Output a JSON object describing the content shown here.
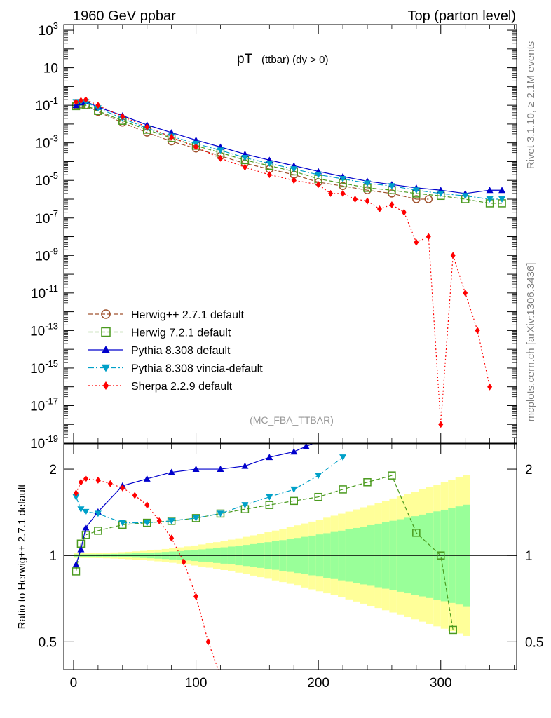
{
  "header": {
    "left": "1960 GeV ppbar",
    "right": "Top (parton level)"
  },
  "side_labels": {
    "rivet": "Rivet 3.1.10, ≥ 2.1M events",
    "mcplots": "mcplots.cern.ch [arXiv:1306.3436]"
  },
  "chart_data": [
    {
      "type": "line",
      "panel": "main",
      "title_main": "pT",
      "title_sub": "(ttbar) (dy > 0)",
      "watermark": "(MC_FBA_TTBAR)",
      "yscale": "log",
      "ylim": [
        1e-19,
        2000
      ],
      "xlim": [
        -8,
        362
      ],
      "ytick_exponents": [
        3,
        1,
        -1,
        -3,
        -5,
        -7,
        -9,
        -11,
        -13,
        -15,
        -17,
        -19
      ],
      "legend_position": "bottom-left",
      "series": [
        {
          "name": "Herwig++ 2.7.1 default",
          "color": "#a0522d",
          "marker": "circle-open",
          "line": "dashed",
          "x": [
            2,
            6,
            10,
            20,
            40,
            60,
            80,
            100,
            120,
            140,
            160,
            180,
            200,
            220,
            240,
            260,
            280,
            290
          ],
          "y": [
            0.1,
            0.12,
            0.1,
            0.045,
            0.012,
            0.0035,
            0.0012,
            0.0005,
            0.0002,
            8e-05,
            4e-05,
            2e-05,
            8e-06,
            5e-06,
            3e-06,
            2e-06,
            1e-06,
            1e-06
          ]
        },
        {
          "name": "Herwig 7.2.1 default",
          "color": "#4a9a1e",
          "marker": "square-open",
          "line": "dashed",
          "x": [
            2,
            6,
            10,
            20,
            40,
            60,
            80,
            100,
            120,
            140,
            160,
            180,
            200,
            220,
            240,
            260,
            280,
            300,
            320,
            340,
            350
          ],
          "y": [
            0.09,
            0.1,
            0.1,
            0.05,
            0.015,
            0.005,
            0.0018,
            0.0007,
            0.0003,
            0.00012,
            6e-05,
            3e-05,
            1.2e-05,
            7e-06,
            4e-06,
            3e-06,
            2e-06,
            1.5e-06,
            1e-06,
            6e-07,
            6e-07
          ]
        },
        {
          "name": "Pythia 8.308 default",
          "color": "#0000cc",
          "marker": "triangle-up",
          "line": "solid",
          "x": [
            2,
            6,
            10,
            20,
            40,
            60,
            80,
            100,
            120,
            140,
            160,
            180,
            200,
            220,
            240,
            260,
            280,
            300,
            320,
            340,
            350
          ],
          "y": [
            0.1,
            0.14,
            0.16,
            0.08,
            0.028,
            0.009,
            0.0035,
            0.0014,
            0.0006,
            0.00025,
            0.00012,
            6e-05,
            3e-05,
            1.6e-05,
            9e-06,
            6e-06,
            4e-06,
            3e-06,
            2e-06,
            3e-06,
            3e-06
          ]
        },
        {
          "name": "Pythia 8.308 vincia-default",
          "color": "#00a0c8",
          "marker": "triangle-down",
          "line": "dashdot",
          "x": [
            2,
            6,
            10,
            20,
            40,
            60,
            80,
            100,
            120,
            140,
            160,
            180,
            200,
            220,
            240,
            260,
            280,
            300,
            320,
            340,
            350
          ],
          "y": [
            0.15,
            0.15,
            0.15,
            0.07,
            0.02,
            0.006,
            0.0022,
            0.0009,
            0.0004,
            0.00016,
            8e-05,
            4e-05,
            2e-05,
            1.2e-05,
            7e-06,
            5e-06,
            3e-06,
            2e-06,
            1.5e-06,
            1e-06,
            1e-06
          ]
        },
        {
          "name": "Sherpa 2.2.9 default",
          "color": "#ff0000",
          "marker": "diamond",
          "line": "dotted",
          "x": [
            2,
            6,
            10,
            20,
            40,
            60,
            80,
            100,
            120,
            140,
            160,
            180,
            200,
            210,
            220,
            230,
            240,
            250,
            260,
            270,
            280,
            290,
            300,
            310,
            320,
            330,
            340
          ],
          "y": [
            0.15,
            0.18,
            0.2,
            0.1,
            0.025,
            0.007,
            0.002,
            0.0006,
            0.00015,
            5e-05,
            2e-05,
            1e-05,
            6e-06,
            2e-06,
            2e-06,
            1e-06,
            8e-07,
            3e-07,
            5e-07,
            2e-07,
            5e-09,
            1e-08,
            1e-18,
            1e-09,
            1e-11,
            1e-13,
            1e-16
          ]
        }
      ]
    },
    {
      "type": "line",
      "panel": "ratio",
      "ylabel": "Ratio to Herwig++ 2.7.1 default",
      "yscale": "log",
      "ylim": [
        0.4,
        2.45
      ],
      "xlim": [
        -8,
        362
      ],
      "xticks": [
        0,
        100,
        200,
        300
      ],
      "yticks": [
        0.5,
        1,
        2
      ],
      "band_inner_color": "#99ff99",
      "band_outer_color": "#ffff99",
      "series": [
        {
          "name": "Herwig 7.2.1 default",
          "color": "#4a9a1e",
          "x": [
            2,
            6,
            10,
            20,
            40,
            60,
            80,
            100,
            120,
            140,
            160,
            180,
            200,
            220,
            240,
            260,
            280,
            300,
            310
          ],
          "y": [
            0.88,
            1.1,
            1.18,
            1.22,
            1.28,
            1.3,
            1.32,
            1.35,
            1.4,
            1.45,
            1.5,
            1.55,
            1.6,
            1.7,
            1.8,
            1.9,
            1.2,
            1.0,
            0.55
          ]
        },
        {
          "name": "Pythia 8.308 default",
          "color": "#0000cc",
          "x": [
            2,
            6,
            10,
            20,
            40,
            60,
            80,
            100,
            120,
            140,
            160,
            180,
            190,
            200
          ],
          "y": [
            0.93,
            1.05,
            1.25,
            1.42,
            1.75,
            1.85,
            1.95,
            2.0,
            2.0,
            2.05,
            2.2,
            2.3,
            2.4,
            2.5
          ]
        },
        {
          "name": "Pythia 8.308 vincia-default",
          "color": "#00a0c8",
          "x": [
            2,
            6,
            10,
            20,
            40,
            60,
            80,
            100,
            120,
            140,
            160,
            180,
            200,
            220
          ],
          "y": [
            1.6,
            1.45,
            1.42,
            1.4,
            1.3,
            1.3,
            1.32,
            1.35,
            1.4,
            1.5,
            1.6,
            1.7,
            1.9,
            2.2
          ]
        },
        {
          "name": "Sherpa 2.2.9 default",
          "color": "#ff0000",
          "x": [
            2,
            6,
            10,
            20,
            30,
            40,
            50,
            60,
            70,
            80,
            90,
            100,
            110,
            120
          ],
          "y": [
            1.65,
            1.8,
            1.85,
            1.83,
            1.78,
            1.72,
            1.62,
            1.5,
            1.32,
            1.15,
            0.95,
            0.72,
            0.5,
            0.38
          ]
        }
      ]
    }
  ]
}
